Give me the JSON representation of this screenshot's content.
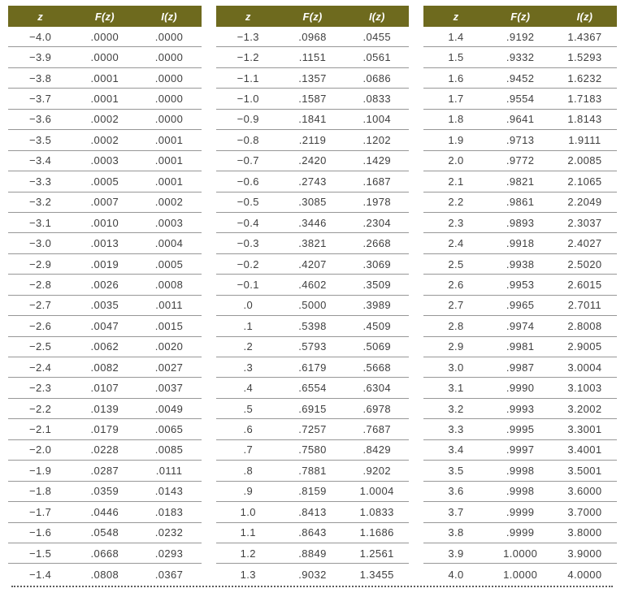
{
  "tables": [
    {
      "name": "standard-normal-table-left",
      "headers": [
        "z",
        "F(z)",
        "I(z)"
      ],
      "rows": [
        [
          "−4.0",
          ".0000",
          ".0000"
        ],
        [
          "−3.9",
          ".0000",
          ".0000"
        ],
        [
          "−3.8",
          ".0001",
          ".0000"
        ],
        [
          "−3.7",
          ".0001",
          ".0000"
        ],
        [
          "−3.6",
          ".0002",
          ".0000"
        ],
        [
          "−3.5",
          ".0002",
          ".0001"
        ],
        [
          "−3.4",
          ".0003",
          ".0001"
        ],
        [
          "−3.3",
          ".0005",
          ".0001"
        ],
        [
          "−3.2",
          ".0007",
          ".0002"
        ],
        [
          "−3.1",
          ".0010",
          ".0003"
        ],
        [
          "−3.0",
          ".0013",
          ".0004"
        ],
        [
          "−2.9",
          ".0019",
          ".0005"
        ],
        [
          "−2.8",
          ".0026",
          ".0008"
        ],
        [
          "−2.7",
          ".0035",
          ".0011"
        ],
        [
          "−2.6",
          ".0047",
          ".0015"
        ],
        [
          "−2.5",
          ".0062",
          ".0020"
        ],
        [
          "−2.4",
          ".0082",
          ".0027"
        ],
        [
          "−2.3",
          ".0107",
          ".0037"
        ],
        [
          "−2.2",
          ".0139",
          ".0049"
        ],
        [
          "−2.1",
          ".0179",
          ".0065"
        ],
        [
          "−2.0",
          ".0228",
          ".0085"
        ],
        [
          "−1.9",
          ".0287",
          ".0111"
        ],
        [
          "−1.8",
          ".0359",
          ".0143"
        ],
        [
          "−1.7",
          ".0446",
          ".0183"
        ],
        [
          "−1.6",
          ".0548",
          ".0232"
        ],
        [
          "−1.5",
          ".0668",
          ".0293"
        ],
        [
          "−1.4",
          ".0808",
          ".0367"
        ]
      ]
    },
    {
      "name": "standard-normal-table-middle",
      "headers": [
        "z",
        "F(z)",
        "I(z)"
      ],
      "rows": [
        [
          "−1.3",
          ".0968",
          ".0455"
        ],
        [
          "−1.2",
          ".1151",
          ".0561"
        ],
        [
          "−1.1",
          ".1357",
          ".0686"
        ],
        [
          "−1.0",
          ".1587",
          ".0833"
        ],
        [
          "−0.9",
          ".1841",
          ".1004"
        ],
        [
          "−0.8",
          ".2119",
          ".1202"
        ],
        [
          "−0.7",
          ".2420",
          ".1429"
        ],
        [
          "−0.6",
          ".2743",
          ".1687"
        ],
        [
          "−0.5",
          ".3085",
          ".1978"
        ],
        [
          "−0.4",
          ".3446",
          ".2304"
        ],
        [
          "−0.3",
          ".3821",
          ".2668"
        ],
        [
          "−0.2",
          ".4207",
          ".3069"
        ],
        [
          "−0.1",
          ".4602",
          ".3509"
        ],
        [
          ".0",
          ".5000",
          ".3989"
        ],
        [
          ".1",
          ".5398",
          ".4509"
        ],
        [
          ".2",
          ".5793",
          ".5069"
        ],
        [
          ".3",
          ".6179",
          ".5668"
        ],
        [
          ".4",
          ".6554",
          ".6304"
        ],
        [
          ".5",
          ".6915",
          ".6978"
        ],
        [
          ".6",
          ".7257",
          ".7687"
        ],
        [
          ".7",
          ".7580",
          ".8429"
        ],
        [
          ".8",
          ".7881",
          ".9202"
        ],
        [
          ".9",
          ".8159",
          "1.0004"
        ],
        [
          "1.0",
          ".8413",
          "1.0833"
        ],
        [
          "1.1",
          ".8643",
          "1.1686"
        ],
        [
          "1.2",
          ".8849",
          "1.2561"
        ],
        [
          "1.3",
          ".9032",
          "1.3455"
        ]
      ]
    },
    {
      "name": "standard-normal-table-right",
      "headers": [
        "z",
        "F(z)",
        "I(z)"
      ],
      "rows": [
        [
          "1.4",
          ".9192",
          "1.4367"
        ],
        [
          "1.5",
          ".9332",
          "1.5293"
        ],
        [
          "1.6",
          ".9452",
          "1.6232"
        ],
        [
          "1.7",
          ".9554",
          "1.7183"
        ],
        [
          "1.8",
          ".9641",
          "1.8143"
        ],
        [
          "1.9",
          ".9713",
          "1.9111"
        ],
        [
          "2.0",
          ".9772",
          "2.0085"
        ],
        [
          "2.1",
          ".9821",
          "2.1065"
        ],
        [
          "2.2",
          ".9861",
          "2.2049"
        ],
        [
          "2.3",
          ".9893",
          "2.3037"
        ],
        [
          "2.4",
          ".9918",
          "2.4027"
        ],
        [
          "2.5",
          ".9938",
          "2.5020"
        ],
        [
          "2.6",
          ".9953",
          "2.6015"
        ],
        [
          "2.7",
          ".9965",
          "2.7011"
        ],
        [
          "2.8",
          ".9974",
          "2.8008"
        ],
        [
          "2.9",
          ".9981",
          "2.9005"
        ],
        [
          "3.0",
          ".9987",
          "3.0004"
        ],
        [
          "3.1",
          ".9990",
          "3.1003"
        ],
        [
          "3.2",
          ".9993",
          "3.2002"
        ],
        [
          "3.3",
          ".9995",
          "3.3001"
        ],
        [
          "3.4",
          ".9997",
          "3.4001"
        ],
        [
          "3.5",
          ".9998",
          "3.5001"
        ],
        [
          "3.6",
          ".9998",
          "3.6000"
        ],
        [
          "3.7",
          ".9999",
          "3.7000"
        ],
        [
          "3.8",
          ".9999",
          "3.8000"
        ],
        [
          "3.9",
          "1.0000",
          "3.9000"
        ],
        [
          "4.0",
          "1.0000",
          "4.0000"
        ]
      ]
    }
  ],
  "colors": {
    "header_background": "#6e6a1e",
    "header_text": "#ffffff",
    "body_text": "#3f3f3f",
    "row_separator": "#979797",
    "dotted_divider": "#5c5c5c"
  }
}
